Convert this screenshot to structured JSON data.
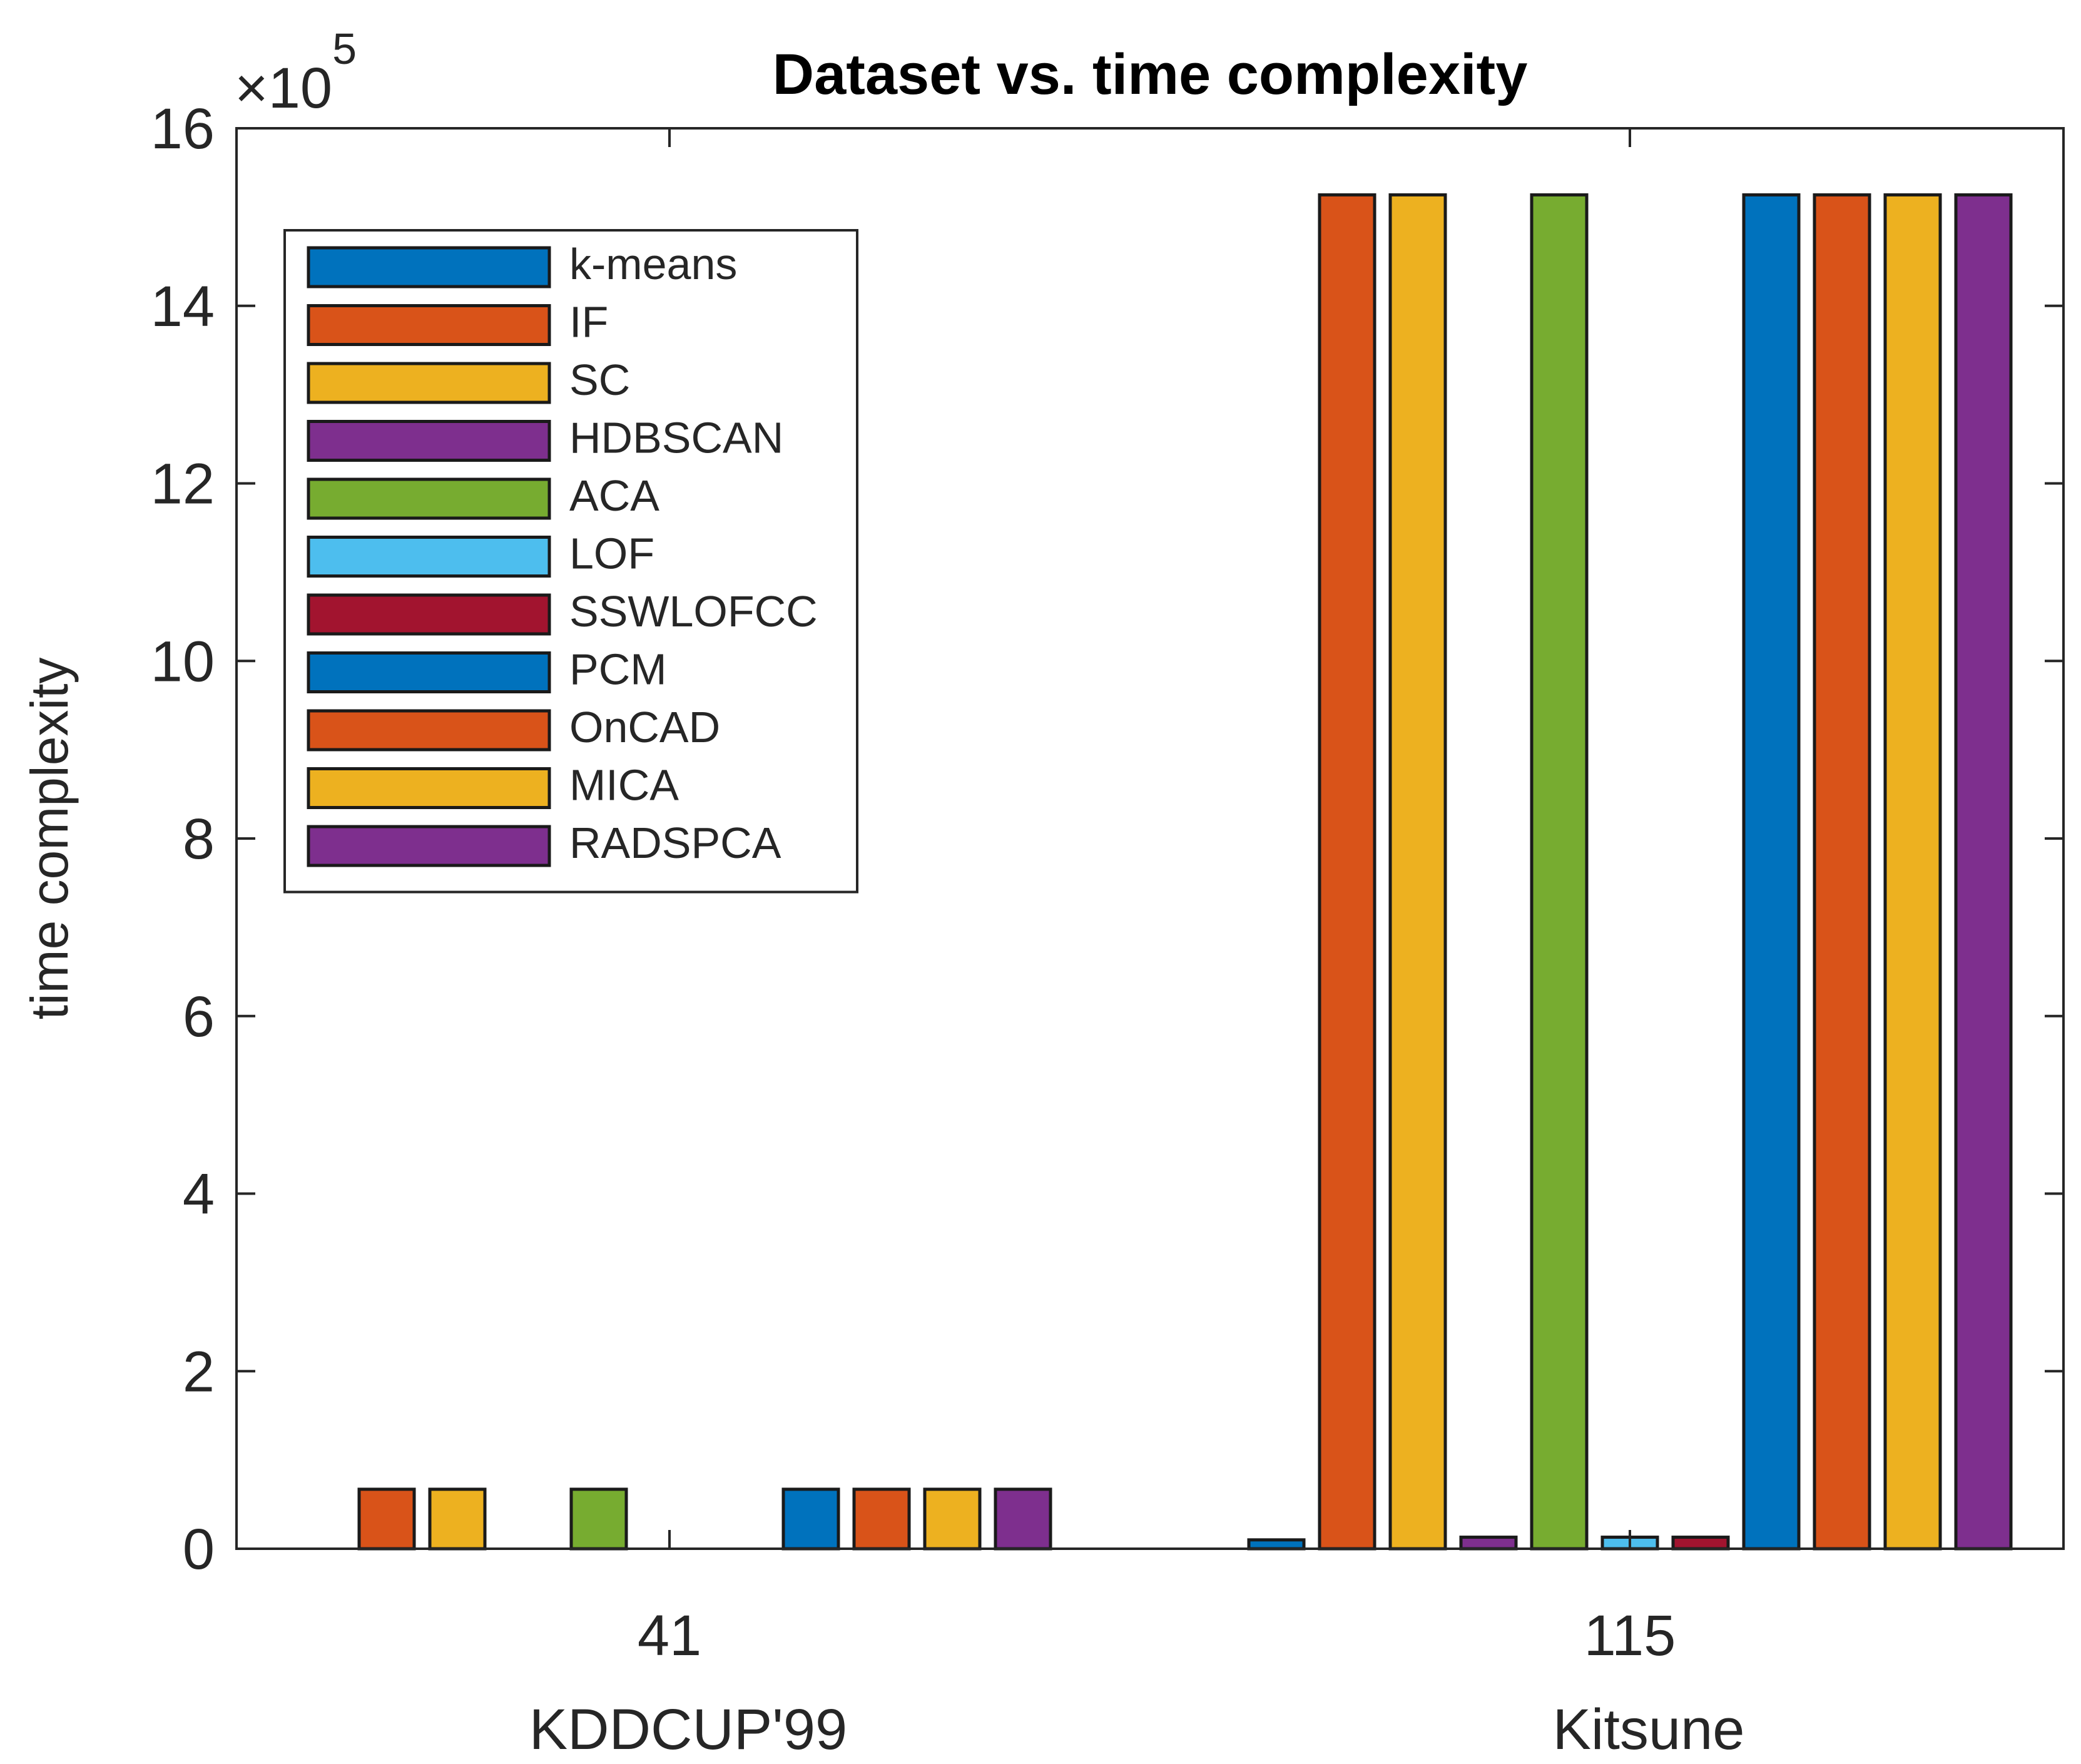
{
  "chart_data": {
    "type": "bar",
    "title": "Dataset vs. time complexity",
    "ylabel": "time complexity",
    "y_exponent_base": "×10",
    "y_exponent_power": "5",
    "ylim": [
      0,
      16
    ],
    "yticks": [
      "0",
      "2",
      "4",
      "6",
      "8",
      "10",
      "12",
      "14",
      "16"
    ],
    "categories": [
      {
        "tick": "41",
        "label": "KDDCUP'99"
      },
      {
        "tick": "115",
        "label": "Kitsune"
      }
    ],
    "series": [
      {
        "name": "k-means",
        "color": "#0072BD",
        "values": [
          0.0,
          0.1
        ]
      },
      {
        "name": "IF",
        "color": "#D95319",
        "values": [
          0.67,
          15.25
        ]
      },
      {
        "name": "SC",
        "color": "#EDB120",
        "values": [
          0.67,
          15.25
        ]
      },
      {
        "name": "HDBSCAN",
        "color": "#7E2F8E",
        "values": [
          0.0,
          0.13
        ]
      },
      {
        "name": "ACA",
        "color": "#77AC30",
        "values": [
          0.67,
          15.25
        ]
      },
      {
        "name": "LOF",
        "color": "#4DBEEE",
        "values": [
          0.0,
          0.13
        ]
      },
      {
        "name": "SSWLOFCC",
        "color": "#A2142F",
        "values": [
          0.0,
          0.13
        ]
      },
      {
        "name": "PCM",
        "color": "#0072BD",
        "values": [
          0.67,
          15.25
        ]
      },
      {
        "name": "OnCAD",
        "color": "#D95319",
        "values": [
          0.67,
          15.25
        ]
      },
      {
        "name": "MICA",
        "color": "#EDB120",
        "values": [
          0.67,
          15.25
        ]
      },
      {
        "name": "RADSPCA",
        "color": "#7E2F8E",
        "values": [
          0.67,
          15.25
        ]
      }
    ],
    "legend_position": "top-left",
    "grid": false
  }
}
